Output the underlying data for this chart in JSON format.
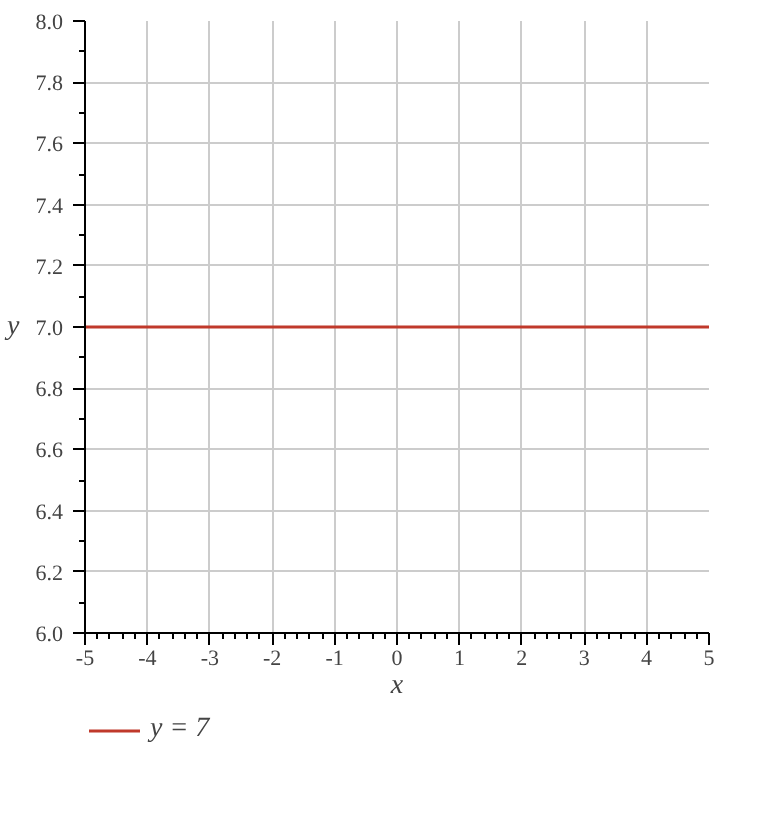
{
  "chart_data": {
    "type": "line",
    "xlabel": "x",
    "ylabel": "y",
    "x": [
      -5,
      5
    ],
    "series": [
      {
        "name": "y = 7",
        "color": "#c0392b",
        "values": [
          7,
          7
        ]
      }
    ],
    "xlim": [
      -5,
      5
    ],
    "ylim": [
      6,
      8
    ],
    "xticks": [
      -5,
      -4,
      -3,
      -2,
      -1,
      0,
      1,
      2,
      3,
      4,
      5
    ],
    "yticks": [
      {
        "value": 6,
        "label": "6.0"
      },
      {
        "value": 6.2,
        "label": "6.2"
      },
      {
        "value": 6.4,
        "label": "6.4"
      },
      {
        "value": 6.6,
        "label": "6.6"
      },
      {
        "value": 6.8,
        "label": "6.8"
      },
      {
        "value": 7,
        "label": "7.0"
      },
      {
        "value": 7.2,
        "label": "7.2"
      },
      {
        "value": 7.4,
        "label": "7.4"
      },
      {
        "value": 7.6,
        "label": "7.6"
      },
      {
        "value": 7.8,
        "label": "7.8"
      },
      {
        "value": 8,
        "label": "8.0"
      }
    ],
    "grid": true,
    "legend": "bottom left",
    "line_style": "solid"
  }
}
